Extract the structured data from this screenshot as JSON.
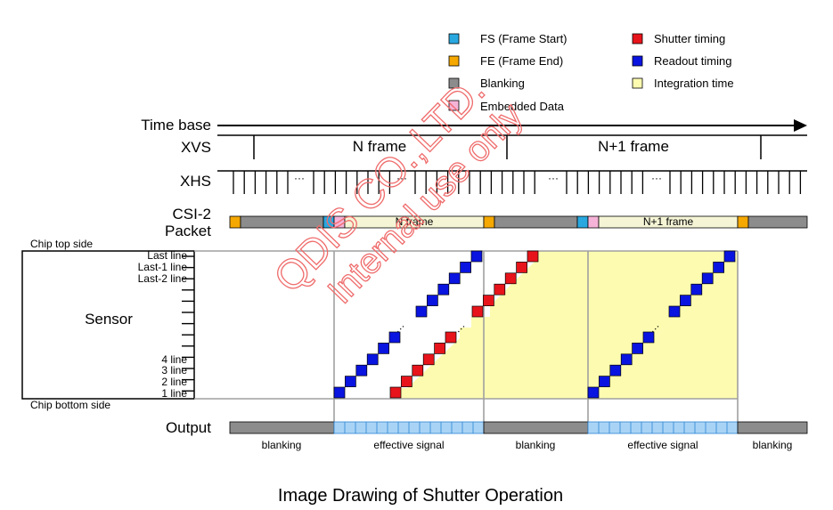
{
  "legend": {
    "items": [
      {
        "key": "fs",
        "label": "FS (Frame Start)",
        "color": "#29a8e0"
      },
      {
        "key": "fe",
        "label": "FE (Frame End)",
        "color": "#f5a800"
      },
      {
        "key": "blanking",
        "label": "Blanking",
        "color": "#8c8c8c"
      },
      {
        "key": "embedded",
        "label": "Embedded Data",
        "color": "#f6b3d8"
      },
      {
        "key": "shutter",
        "label": "Shutter timing",
        "color": "#e8141b"
      },
      {
        "key": "readout",
        "label": "Readout timing",
        "color": "#0a14e0"
      },
      {
        "key": "integration",
        "label": "Integration time",
        "color": "#fdfbb0"
      }
    ]
  },
  "rows": {
    "time_base": "Time base",
    "xvs": "XVS",
    "xhs": "XHS",
    "csi_line1": "CSI-2",
    "csi_line2": "Packet",
    "sensor": "Sensor",
    "output": "Output"
  },
  "frames": {
    "n": "N frame",
    "n1": "N+1 frame"
  },
  "packet": {
    "n": "N frame",
    "n1": "N+1 frame"
  },
  "dots": "···",
  "chip": {
    "top": "Chip top side",
    "bottom": "Chip bottom side"
  },
  "lines": {
    "last": "Last line",
    "last1": "Last-1 line",
    "last2": "Last-2 line",
    "l4": "4 line",
    "l3": "3 line",
    "l2": "2 line",
    "l1": "1 line"
  },
  "output_labels": {
    "blanking1": "blanking",
    "effective1": "effective signal",
    "blanking2": "blanking",
    "effective2": "effective signal",
    "blanking3": "blanking"
  },
  "watermark": {
    "line1": "QDIS CO.,LTD.",
    "line2": "Internal use only"
  },
  "caption": "Image Drawing of Shutter Operation",
  "colors": {
    "grid": "#a0a0a0",
    "blanking": "#8c8c8c",
    "effective": "#a9d3f5",
    "effective_border": "#2b86d6",
    "frame_bg": "#f5f5d6",
    "watermark": "#ef6b6b"
  }
}
